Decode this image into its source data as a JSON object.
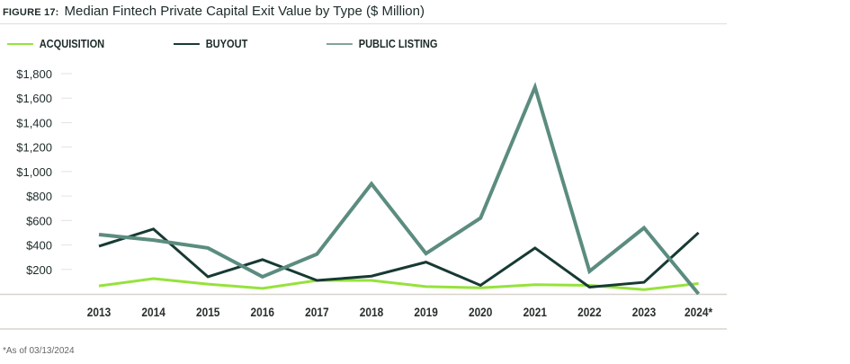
{
  "title": {
    "figure": "FIGURE 17:",
    "text": "Median Fintech Private Capital Exit Value by Type ($ Million)"
  },
  "note": "*As of 03/13/2024",
  "chart_data": {
    "type": "line",
    "title": "Median Fintech Private Capital Exit Value by Type ($ Million)",
    "xlabel": "",
    "ylabel": "",
    "categories": [
      "2013",
      "2014",
      "2015",
      "2016",
      "2017",
      "2018",
      "2019",
      "2020",
      "2021",
      "2022",
      "2023",
      "2024*"
    ],
    "ylim": [
      0,
      1800
    ],
    "yticks": [
      200,
      400,
      600,
      800,
      1000,
      1200,
      1400,
      1600,
      1800
    ],
    "ytick_labels": [
      "$200",
      "$400",
      "$600",
      "$800",
      "$1,000",
      "$1,200",
      "$1,400",
      "$1,600",
      "$1,800"
    ],
    "legend": "top",
    "grid": false,
    "series": [
      {
        "name": "ACQUISITION",
        "color": "#96e23c",
        "values": [
          65,
          125,
          80,
          45,
          110,
          110,
          60,
          50,
          75,
          70,
          35,
          85
        ]
      },
      {
        "name": "BUYOUT",
        "color": "#173a33",
        "values": [
          390,
          530,
          140,
          280,
          110,
          145,
          260,
          70,
          375,
          55,
          95,
          500
        ]
      },
      {
        "name": "PUBLIC LISTING",
        "color": "#5b8c7f",
        "values": [
          485,
          440,
          375,
          140,
          325,
          900,
          330,
          620,
          1690,
          185,
          540,
          0
        ]
      }
    ]
  }
}
